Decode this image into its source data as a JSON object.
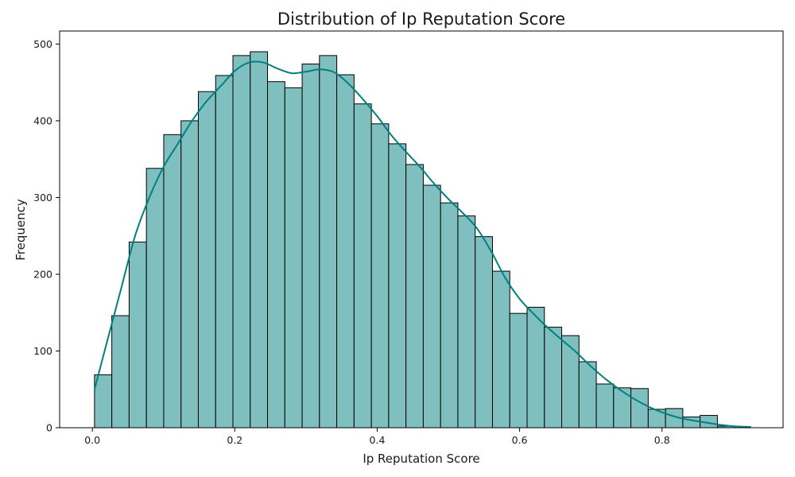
{
  "chart_data": {
    "type": "histogram",
    "title": "Distribution of Ip Reputation Score",
    "xlabel": "Ip Reputation Score",
    "ylabel": "Frequency",
    "xlim": [
      -0.046,
      0.97
    ],
    "ylim": [
      0,
      517
    ],
    "x_ticks": [
      "0.0",
      "0.2",
      "0.4",
      "0.6",
      "0.8"
    ],
    "x_tick_values": [
      0.0,
      0.2,
      0.4,
      0.6,
      0.8
    ],
    "y_ticks": [
      "0",
      "100",
      "200",
      "300",
      "400",
      "500"
    ],
    "y_tick_values": [
      0,
      100,
      200,
      300,
      400,
      500
    ],
    "bin_width": 0.0243,
    "bins_start": 0.003,
    "bar_values": [
      69,
      146,
      242,
      338,
      382,
      400,
      438,
      459,
      485,
      490,
      451,
      443,
      474,
      485,
      460,
      422,
      396,
      370,
      343,
      316,
      293,
      276,
      249,
      204,
      149,
      157,
      131,
      120,
      86,
      57,
      52,
      51,
      24,
      25,
      14,
      16,
      2
    ],
    "kde": {
      "x": [
        0.003,
        0.02,
        0.04,
        0.06,
        0.08,
        0.1,
        0.12,
        0.14,
        0.16,
        0.18,
        0.2,
        0.22,
        0.24,
        0.26,
        0.28,
        0.3,
        0.32,
        0.34,
        0.36,
        0.38,
        0.4,
        0.42,
        0.44,
        0.46,
        0.48,
        0.5,
        0.52,
        0.54,
        0.56,
        0.58,
        0.6,
        0.62,
        0.64,
        0.66,
        0.68,
        0.7,
        0.72,
        0.74,
        0.76,
        0.78,
        0.8,
        0.82,
        0.84,
        0.86,
        0.88,
        0.9,
        0.925
      ],
      "y": [
        50,
        110,
        180,
        250,
        300,
        340,
        370,
        400,
        425,
        445,
        465,
        476,
        476,
        468,
        462,
        464,
        467,
        463,
        448,
        428,
        406,
        381,
        360,
        340,
        318,
        298,
        280,
        260,
        230,
        195,
        168,
        148,
        130,
        114,
        98,
        80,
        64,
        50,
        38,
        28,
        20,
        14,
        10,
        7,
        4,
        2,
        1
      ]
    },
    "bar_fill": "#80bfbf",
    "bar_edge": "#000000",
    "kde_color": "#008080",
    "grid": false,
    "legend": "none"
  }
}
